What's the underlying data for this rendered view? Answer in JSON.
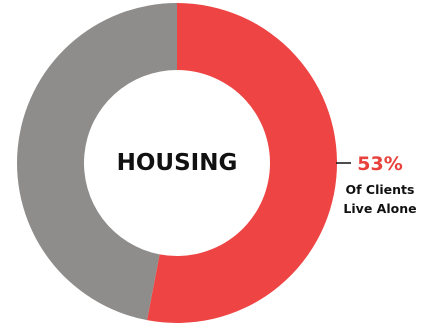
{
  "chart_data": {
    "type": "pie",
    "title": "HOUSING",
    "slices": [
      {
        "label": "Live Alone",
        "value": 53,
        "color": "#EE4444"
      },
      {
        "label": "",
        "value": 47,
        "color": "#8F8D8B"
      }
    ],
    "annotation": {
      "value_text": "53%",
      "lines": [
        "Of Clients",
        "Live Alone"
      ],
      "color": "#E8413C"
    }
  }
}
